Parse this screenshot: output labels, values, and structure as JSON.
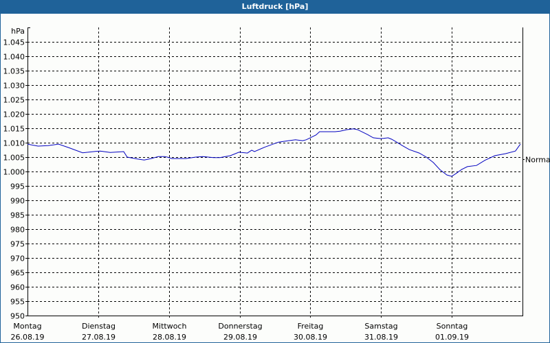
{
  "window": {
    "title": "Luftdruck [hPa]"
  },
  "colors": {
    "titlebar": "#1f6299",
    "line": "#0000c0",
    "grid": "#000000",
    "background": "#fcfdfb"
  },
  "chart_data": {
    "type": "line",
    "title": "Luftdruck [hPa]",
    "ylabel": "hPa",
    "xlabel": "",
    "ylim": [
      950,
      1050
    ],
    "yticks": [
      950,
      955,
      960,
      965,
      970,
      975,
      980,
      985,
      990,
      995,
      1000,
      1005,
      1010,
      1015,
      1020,
      1025,
      1030,
      1035,
      1040,
      1045
    ],
    "ytick_labels": [
      "950",
      "955",
      "960",
      "965",
      "970",
      "975",
      "980",
      "985",
      "990",
      "995",
      "1.000",
      "1.005",
      "1.010",
      "1.015",
      "1.020",
      "1.025",
      "1.030",
      "1.035",
      "1.040",
      "1.045"
    ],
    "categories": [
      {
        "day": "Montag",
        "date": "26.08.19"
      },
      {
        "day": "Dienstag",
        "date": "27.08.19"
      },
      {
        "day": "Mittwoch",
        "date": "28.08.19"
      },
      {
        "day": "Donnerstag",
        "date": "29.08.19"
      },
      {
        "day": "Freitag",
        "date": "30.08.19"
      },
      {
        "day": "Samstag",
        "date": "31.08.19"
      },
      {
        "day": "Sonntag",
        "date": "01.09.19"
      }
    ],
    "reference_line": {
      "label": "Normal",
      "value": 1004.3
    },
    "grid": true,
    "x_unit": "days since Montag 26.08.19 00:00",
    "series": [
      {
        "name": "Luftdruck",
        "x": [
          0,
          0.15,
          0.29,
          0.44,
          0.58,
          0.78,
          0.97,
          1.03,
          1.17,
          1.36,
          1.41,
          1.56,
          1.65,
          1.75,
          1.85,
          1.94,
          1.99,
          2.04,
          2.12,
          2.24,
          2.38,
          2.48,
          2.63,
          2.72,
          2.87,
          2.99,
          3.11,
          3.17,
          3.21,
          3.35,
          3.55,
          3.69,
          3.79,
          3.89,
          3.94,
          4.08,
          4.13,
          4.35,
          4.42,
          4.51,
          4.61,
          4.67,
          4.81,
          4.89,
          5.0,
          5.1,
          5.15,
          5.2,
          5.3,
          5.4,
          5.54,
          5.64,
          5.74,
          5.83,
          5.93,
          6.0,
          6.06,
          6.14,
          6.22,
          6.35,
          6.47,
          6.61,
          6.76,
          6.9,
          6.97
        ],
        "values": [
          1009.5,
          1008.8,
          1009.0,
          1009.5,
          1008.3,
          1006.5,
          1007.0,
          1007.1,
          1006.6,
          1006.9,
          1005.0,
          1004.3,
          1004.0,
          1004.5,
          1005.2,
          1005.2,
          1004.9,
          1004.5,
          1004.5,
          1004.5,
          1005.0,
          1005.2,
          1004.8,
          1004.8,
          1005.5,
          1006.7,
          1006.4,
          1007.4,
          1006.9,
          1008.4,
          1010.2,
          1010.7,
          1011.0,
          1010.7,
          1011.0,
          1012.7,
          1013.8,
          1013.8,
          1014.0,
          1014.5,
          1014.8,
          1014.5,
          1012.8,
          1011.7,
          1011.4,
          1011.7,
          1011.2,
          1010.5,
          1009.0,
          1007.6,
          1006.4,
          1005.0,
          1003.1,
          1000.7,
          998.8,
          998.3,
          999.3,
          1000.7,
          1001.7,
          1002.1,
          1003.9,
          1005.5,
          1006.2,
          1007.1,
          1009.5
        ]
      }
    ]
  }
}
